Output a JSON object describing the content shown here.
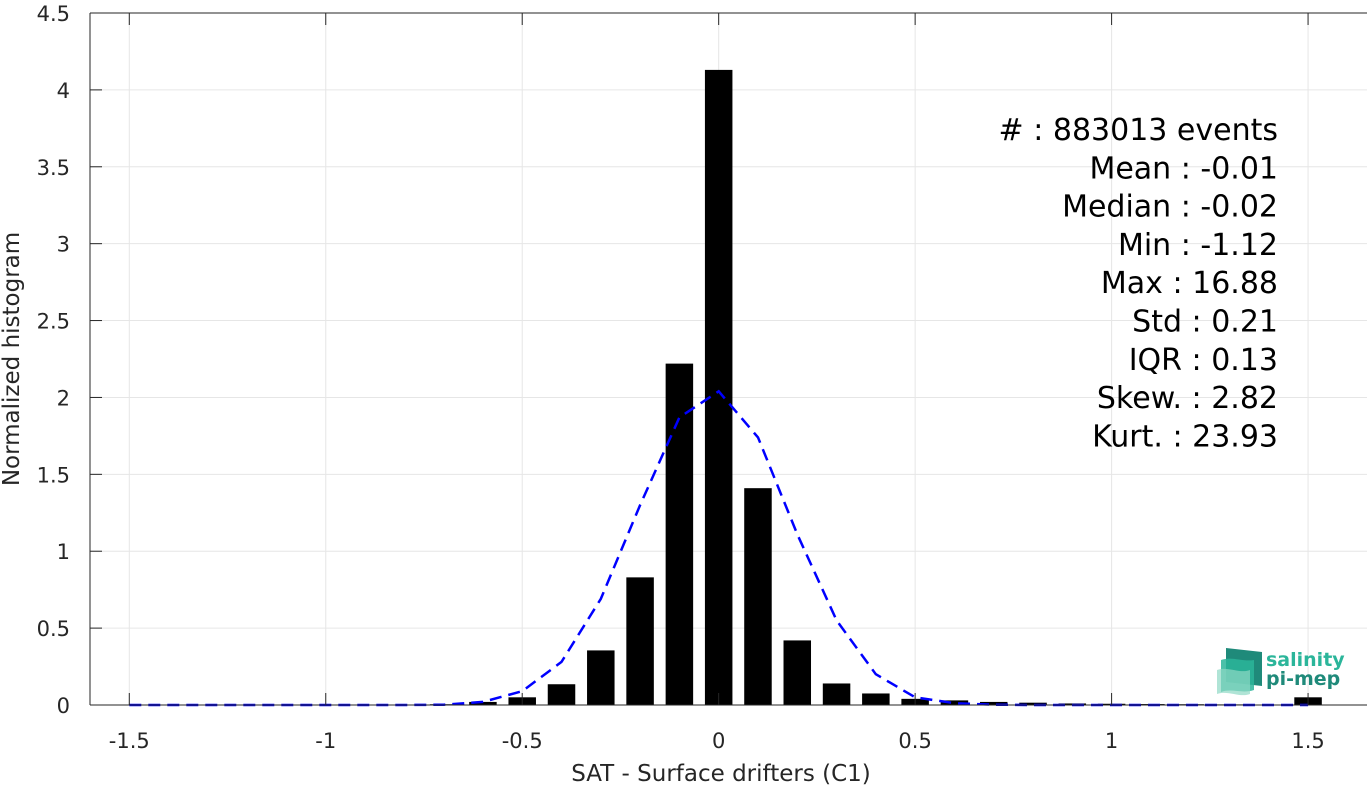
{
  "chart_data": {
    "type": "bar",
    "xlabel": "SAT - Surface drifters (C1)",
    "ylabel": "Normalized histogram",
    "xlim": [
      -1.6,
      1.65
    ],
    "ylim": [
      0,
      4.5
    ],
    "grid": true,
    "xticks": [
      -1.5,
      -1,
      -0.5,
      0,
      0.5,
      1,
      1.5
    ],
    "xtick_labels": [
      "-1.5",
      "-1",
      "-0.5",
      "0",
      "0.5",
      "1",
      "1.5"
    ],
    "yticks": [
      0,
      0.5,
      1,
      1.5,
      2,
      2.5,
      3,
      3.5,
      4,
      4.5
    ],
    "ytick_labels": [
      "0",
      "0.5",
      "1",
      "1.5",
      "2",
      "2.5",
      "3",
      "3.5",
      "4",
      "4.5"
    ],
    "bar_width": 0.07,
    "bar_color": "#000000",
    "series": [
      {
        "type": "bar",
        "x": [
          -1.5,
          -1.4,
          -1.3,
          -1.2,
          -1.1,
          -1.0,
          -0.9,
          -0.8,
          -0.7,
          -0.6,
          -0.5,
          -0.4,
          -0.3,
          -0.2,
          -0.1,
          0.0,
          0.1,
          0.2,
          0.3,
          0.4,
          0.5,
          0.6,
          0.7,
          0.8,
          0.9,
          1.0,
          1.1,
          1.2,
          1.3,
          1.4,
          1.5
        ],
        "values": [
          0.0,
          0.0,
          0.0,
          0.0,
          0.0,
          0.0,
          0.001,
          0.002,
          0.005,
          0.02,
          0.05,
          0.135,
          0.355,
          0.83,
          2.22,
          4.13,
          1.41,
          0.42,
          0.14,
          0.075,
          0.04,
          0.03,
          0.02,
          0.015,
          0.01,
          0.008,
          0.006,
          0.005,
          0.004,
          0.003,
          0.05
        ]
      },
      {
        "type": "line",
        "style": "dashed",
        "color": "#0000ff",
        "x": [
          -1.5,
          -1.4,
          -1.3,
          -1.2,
          -1.1,
          -1.0,
          -0.9,
          -0.8,
          -0.7,
          -0.6,
          -0.5,
          -0.4,
          -0.3,
          -0.2,
          -0.1,
          0.0,
          0.1,
          0.2,
          0.3,
          0.4,
          0.5,
          0.6,
          0.7,
          0.8,
          0.9,
          1.0,
          1.1,
          1.2,
          1.3,
          1.4,
          1.5
        ],
        "values": [
          0.0,
          0.0,
          0.0,
          0.0,
          0.0,
          0.0,
          0.0,
          0.0,
          0.002,
          0.02,
          0.09,
          0.28,
          0.69,
          1.3,
          1.87,
          2.04,
          1.74,
          1.11,
          0.55,
          0.2,
          0.05,
          0.012,
          0.002,
          0.0,
          0.0,
          0.0,
          0.0,
          0.0,
          0.0,
          0.0,
          0.0
        ]
      }
    ],
    "annotations": [
      "#  : 883013 events",
      "Mean : -0.01",
      "Median : -0.02",
      "Min : -1.12",
      "Max : 16.88",
      "Std : 0.21",
      "IQR : 0.13",
      "Skew. : 2.82",
      "Kurt. : 23.93"
    ]
  },
  "logo": {
    "line1": "salinity",
    "line2": "pi-mep",
    "color_dark": "#1f8a7a",
    "color_light": "#2bb59a"
  }
}
